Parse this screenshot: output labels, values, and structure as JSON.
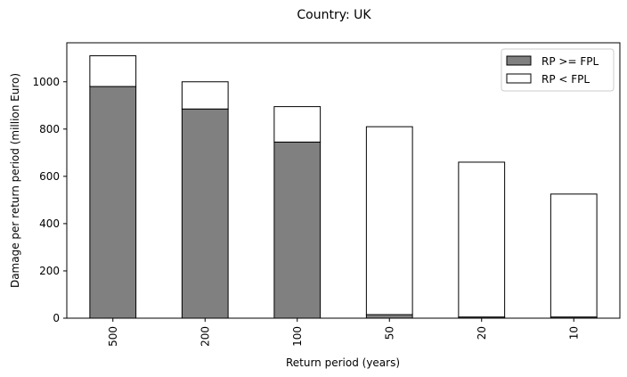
{
  "chart_data": {
    "type": "bar",
    "stacked": true,
    "title": "Country: UK",
    "xlabel": "Return period (years)",
    "ylabel": "Damage per return period (million Euro)",
    "categories": [
      "500",
      "200",
      "100",
      "50",
      "20",
      "10"
    ],
    "ylim": [
      0,
      1165
    ],
    "yticks": [
      0,
      200,
      400,
      600,
      800,
      1000
    ],
    "grid": false,
    "legend_position": "top-right",
    "series": [
      {
        "name": "RP >= FPL",
        "color": "#808080",
        "values": [
          980,
          885,
          745,
          15,
          5,
          5
        ]
      },
      {
        "name": "RP < FPL",
        "color": "#ffffff",
        "values": [
          130,
          115,
          150,
          795,
          655,
          520
        ]
      }
    ]
  }
}
